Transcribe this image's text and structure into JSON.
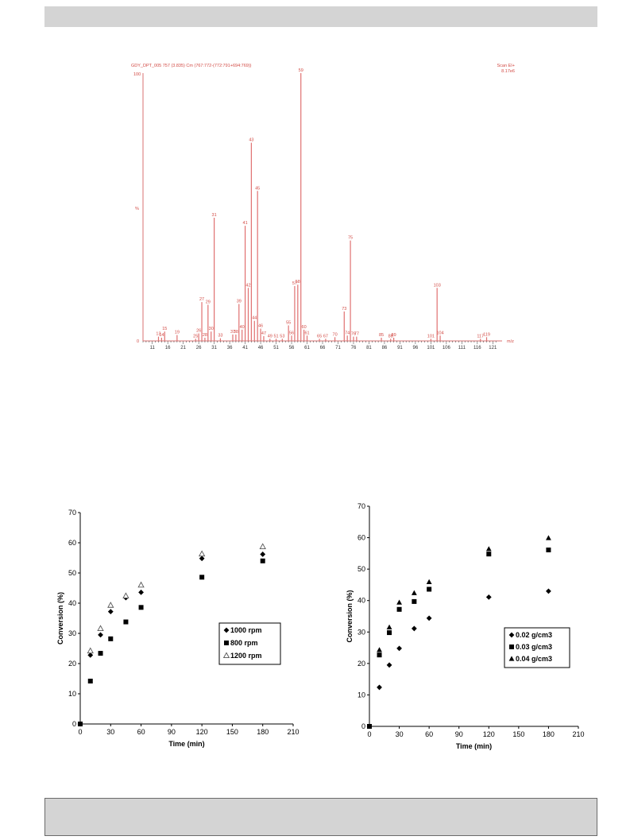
{
  "chart_data": [
    {
      "type": "bar",
      "title": "GDY_DPT_005 757 (3.835) Cm (767:772-(772:791+694:769))",
      "scan_label": "Scan EI+",
      "intensity_label": "8.17e6",
      "y_top_label": "100",
      "y_mid_label": "%",
      "y_zero_label": "0",
      "xlabel": "m/z",
      "xlim": [
        8,
        124
      ],
      "ylim": [
        0,
        100
      ],
      "x_ticks": [
        "11",
        "16",
        "21",
        "26",
        "31",
        "36",
        "41",
        "46",
        "51",
        "56",
        "61",
        "66",
        "71",
        "76",
        "81",
        "86",
        "91",
        "96",
        "101",
        "106",
        "111",
        "116",
        "121"
      ],
      "peaks": [
        {
          "mz": 13,
          "i": 1.6,
          "label": "13"
        },
        {
          "mz": 14,
          "i": 1.2,
          "label": "14"
        },
        {
          "mz": 15,
          "i": 3.5,
          "label": "15"
        },
        {
          "mz": 19,
          "i": 2.2,
          "label": "19"
        },
        {
          "mz": 25,
          "i": 0.8,
          "label": "25"
        },
        {
          "mz": 26,
          "i": 2.8,
          "label": "26"
        },
        {
          "mz": 27,
          "i": 14.5,
          "label": "27"
        },
        {
          "mz": 28,
          "i": 1.2,
          "label": "28"
        },
        {
          "mz": 29,
          "i": 13.5,
          "label": "29"
        },
        {
          "mz": 30,
          "i": 3.5,
          "label": "30"
        },
        {
          "mz": 31,
          "i": 46,
          "label": "31"
        },
        {
          "mz": 33,
          "i": 1,
          "label": "33"
        },
        {
          "mz": 37,
          "i": 2.4,
          "label": "37"
        },
        {
          "mz": 38,
          "i": 2.4,
          "label": "38"
        },
        {
          "mz": 39,
          "i": 13.8,
          "label": "39"
        },
        {
          "mz": 40,
          "i": 4.2,
          "label": "40"
        },
        {
          "mz": 41,
          "i": 43,
          "label": "41"
        },
        {
          "mz": 42,
          "i": 19.8,
          "label": "42"
        },
        {
          "mz": 43,
          "i": 74,
          "label": "43"
        },
        {
          "mz": 44,
          "i": 7.5,
          "label": "44"
        },
        {
          "mz": 45,
          "i": 56,
          "label": "45"
        },
        {
          "mz": 46,
          "i": 4.6,
          "label": "46"
        },
        {
          "mz": 47,
          "i": 1.8,
          "label": "47"
        },
        {
          "mz": 49,
          "i": 0.8,
          "label": "49"
        },
        {
          "mz": 51,
          "i": 0.8,
          "label": "51"
        },
        {
          "mz": 53,
          "i": 0.8,
          "label": "53"
        },
        {
          "mz": 55,
          "i": 5.8,
          "label": "55"
        },
        {
          "mz": 56,
          "i": 2,
          "label": "56"
        },
        {
          "mz": 57,
          "i": 20.5,
          "label": "57"
        },
        {
          "mz": 58,
          "i": 21,
          "label": "58"
        },
        {
          "mz": 59,
          "i": 100,
          "label": "59"
        },
        {
          "mz": 60,
          "i": 4.2,
          "label": "60"
        },
        {
          "mz": 61,
          "i": 2,
          "label": "61"
        },
        {
          "mz": 65,
          "i": 0.8,
          "label": "65"
        },
        {
          "mz": 67,
          "i": 0.8,
          "label": "67"
        },
        {
          "mz": 70,
          "i": 1.4,
          "label": "70"
        },
        {
          "mz": 73,
          "i": 11,
          "label": "73"
        },
        {
          "mz": 74,
          "i": 2,
          "label": "74"
        },
        {
          "mz": 75,
          "i": 37.5,
          "label": "75"
        },
        {
          "mz": 76,
          "i": 1.6,
          "label": "76"
        },
        {
          "mz": 77,
          "i": 1.6,
          "label": "77"
        },
        {
          "mz": 85,
          "i": 1.2,
          "label": "85"
        },
        {
          "mz": 88,
          "i": 0.8,
          "label": "88"
        },
        {
          "mz": 89,
          "i": 1.2,
          "label": "89"
        },
        {
          "mz": 101,
          "i": 0.8,
          "label": "101"
        },
        {
          "mz": 103,
          "i": 19.8,
          "label": "103"
        },
        {
          "mz": 104,
          "i": 2,
          "label": "104"
        },
        {
          "mz": 117,
          "i": 0.8,
          "label": "117"
        },
        {
          "mz": 119,
          "i": 1.4,
          "label": "119"
        }
      ]
    },
    {
      "type": "scatter",
      "xlabel": "Time (min)",
      "ylabel": "Conversion (%)",
      "xlim": [
        0,
        210
      ],
      "ylim": [
        0,
        70
      ],
      "x_ticks": [
        "0",
        "30",
        "60",
        "90",
        "120",
        "150",
        "180",
        "210"
      ],
      "y_ticks": [
        "0",
        "10",
        "20",
        "30",
        "40",
        "50",
        "60",
        "70"
      ],
      "legend_position": "center-right",
      "series": [
        {
          "name": "1000 rpm",
          "marker": "diamond",
          "points": [
            [
              0,
              0
            ],
            [
              10,
              22.8
            ],
            [
              20,
              29.5
            ],
            [
              30,
              37.2
            ],
            [
              45,
              41.8
            ],
            [
              60,
              43.6
            ],
            [
              120,
              54.8
            ],
            [
              180,
              56.2
            ]
          ]
        },
        {
          "name": "800 rpm",
          "marker": "square",
          "points": [
            [
              0,
              0
            ],
            [
              10,
              14.2
            ],
            [
              20,
              23.4
            ],
            [
              30,
              28.2
            ],
            [
              45,
              33.8
            ],
            [
              60,
              38.6
            ],
            [
              120,
              48.6
            ],
            [
              180,
              54
            ]
          ]
        },
        {
          "name": "1200 rpm",
          "marker": "triangle-open",
          "points": [
            [
              10,
              24.2
            ],
            [
              20,
              31.6
            ],
            [
              30,
              39.3
            ],
            [
              45,
              42.4
            ],
            [
              60,
              46
            ],
            [
              120,
              56.3
            ],
            [
              180,
              58.7
            ]
          ]
        }
      ]
    },
    {
      "type": "scatter",
      "xlabel": "Time (min)",
      "ylabel": "Conversion (%)",
      "xlim": [
        0,
        210
      ],
      "ylim": [
        0,
        70
      ],
      "x_ticks": [
        "0",
        "30",
        "60",
        "90",
        "120",
        "150",
        "180",
        "210"
      ],
      "y_ticks": [
        "0",
        "10",
        "20",
        "30",
        "40",
        "50",
        "60",
        "70"
      ],
      "legend_position": "center-right",
      "series": [
        {
          "name": "0.02 g/cm3",
          "marker": "diamond",
          "points": [
            [
              0,
              0
            ],
            [
              10,
              12.4
            ],
            [
              20,
              19.5
            ],
            [
              30,
              24.8
            ],
            [
              45,
              31.1
            ],
            [
              60,
              34.4
            ],
            [
              120,
              41.1
            ],
            [
              180,
              43
            ]
          ]
        },
        {
          "name": "0.03 g/cm3",
          "marker": "square",
          "points": [
            [
              0,
              0
            ],
            [
              10,
              22.7
            ],
            [
              20,
              29.8
            ],
            [
              30,
              37.2
            ],
            [
              45,
              39.7
            ],
            [
              60,
              43.6
            ],
            [
              120,
              54.8
            ],
            [
              180,
              56.1
            ]
          ]
        },
        {
          "name": "0.04 g/cm3",
          "marker": "triangle",
          "points": [
            [
              10,
              24.3
            ],
            [
              20,
              31.5
            ],
            [
              30,
              39.4
            ],
            [
              45,
              42.4
            ],
            [
              60,
              45.9
            ],
            [
              120,
              56.4
            ],
            [
              180,
              59.9
            ]
          ]
        }
      ]
    }
  ]
}
